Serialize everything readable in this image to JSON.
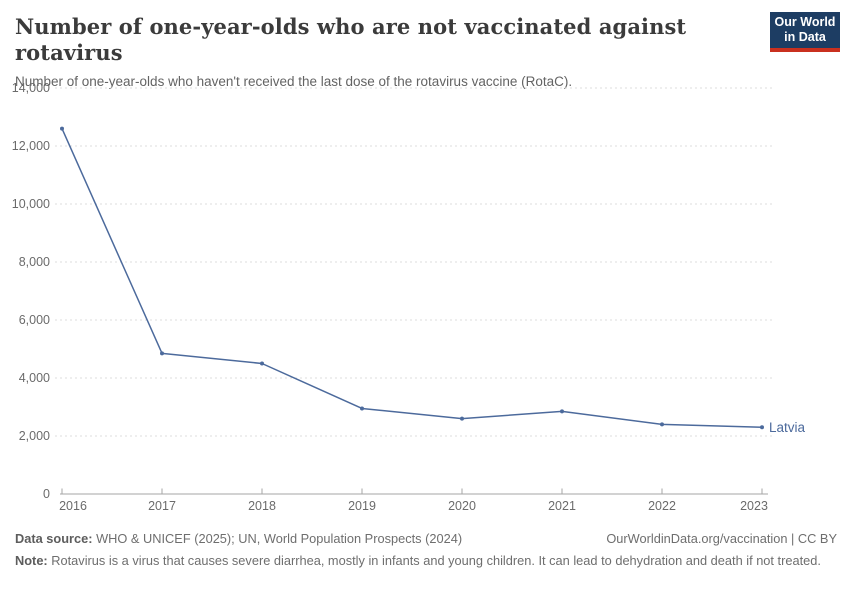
{
  "header": {
    "title": "Number of one-year-olds who are not vaccinated against rotavirus",
    "subtitle": "Number of one-year-olds who haven't received the last dose of the rotavirus vaccine (RotaC)."
  },
  "logo": {
    "line1": "Our World",
    "line2": "in Data",
    "bg_color": "#1d3d63",
    "accent_color": "#c9301f"
  },
  "chart_data": {
    "type": "line",
    "title": "Number of one-year-olds who are not vaccinated against rotavirus",
    "x": [
      2016,
      2017,
      2018,
      2019,
      2020,
      2021,
      2022,
      2023
    ],
    "series": [
      {
        "name": "Latvia",
        "color": "#4c6a9c",
        "values": [
          12600,
          4850,
          4500,
          2950,
          2600,
          2850,
          2400,
          2300
        ]
      }
    ],
    "ylim": [
      0,
      14000
    ],
    "ytick_step": 2000,
    "xlabel": "",
    "ylabel": "",
    "grid": "horizontal-dashed",
    "legend": "end-of-line-label"
  },
  "chart_style": {
    "grid_color": "#dcdcdc",
    "axis_color": "#a5a5a5",
    "tick_label_color": "#6b6b6b",
    "line_color": "#4c6a9c"
  },
  "footer": {
    "source_label": "Data source:",
    "source_text": " WHO & UNICEF (2025); UN, World Population Prospects (2024)",
    "attribution": "OurWorldinData.org/vaccination | CC BY",
    "note_label": "Note:",
    "note_text": " Rotavirus is a virus that causes severe diarrhea, mostly in infants and young children. It can lead to dehydration and death if not treated."
  }
}
